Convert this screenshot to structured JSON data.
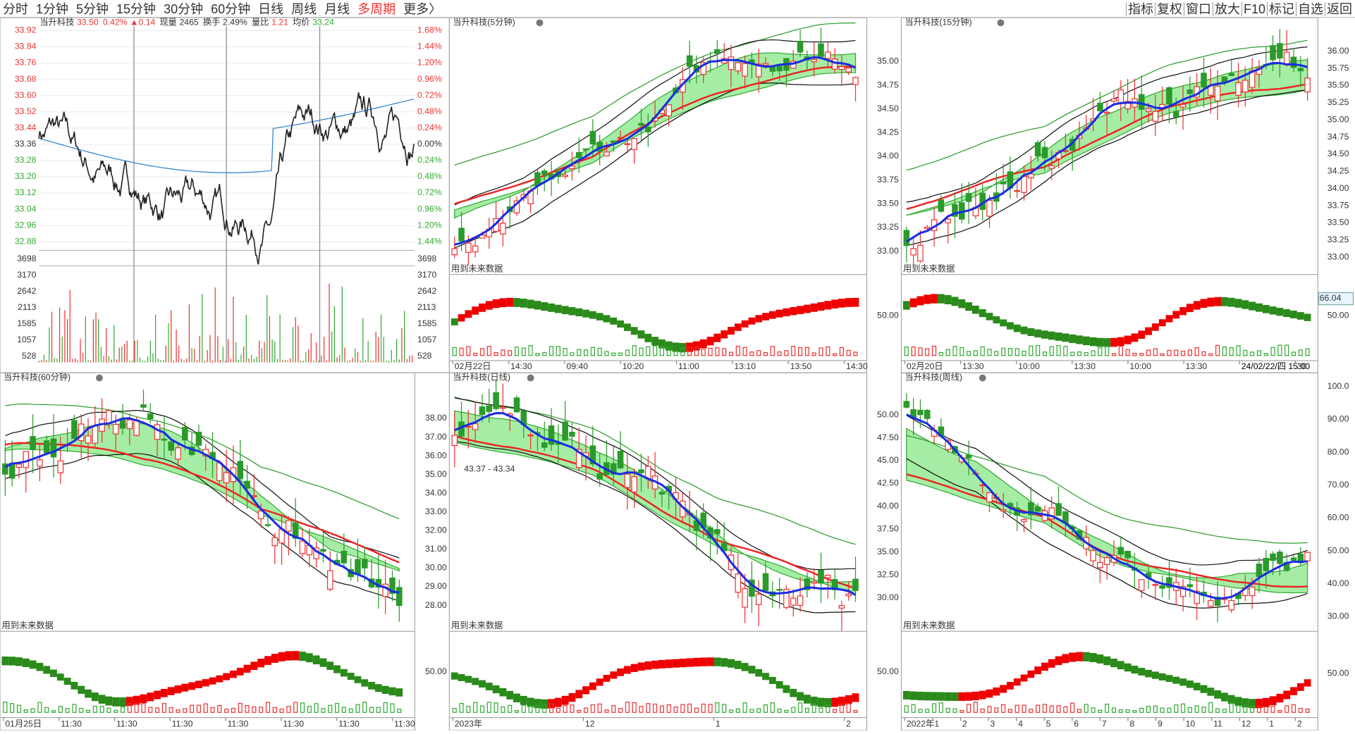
{
  "toolbar": {
    "tabs": [
      "分时",
      "1分钟",
      "5分钟",
      "15分钟",
      "30分钟",
      "60分钟",
      "日线",
      "周线",
      "月线",
      "多周期",
      "更多〉"
    ],
    "tools": [
      "指标",
      "复权",
      "窗口",
      "放大",
      "F10",
      "标记",
      "自选",
      "返回"
    ]
  },
  "intraday": {
    "name": "当升科技",
    "price": "33.50",
    "change_pct": "0.42%",
    "change": "▲0.14",
    "volume_label": "现量",
    "volume": "2465",
    "turnover_label": "换手",
    "turnover": "2.49%",
    "ratio_label": "量比",
    "ratio": "1.21",
    "avg_label": "均价",
    "avg": "33.24",
    "price_ticks": [
      "33.92",
      "33.84",
      "33.76",
      "33.68",
      "33.60",
      "33.52",
      "33.44",
      "33.36",
      "33.28",
      "33.20",
      "33.12",
      "33.04",
      "32.96",
      "32.88"
    ],
    "pct_ticks": [
      "1.68%",
      "1.44%",
      "1.20%",
      "0.96%",
      "0.72%",
      "0.48%",
      "0.24%",
      "0.00%",
      "0.24%",
      "0.48%",
      "0.72%",
      "0.96%",
      "1.20%",
      "1.44%"
    ],
    "max_volume": "3698",
    "vol_ticks": [
      "3170",
      "2642",
      "2113",
      "1585",
      "1057",
      "528"
    ]
  },
  "panels": [
    {
      "title": "当升科技(5分钟)",
      "note": "用到未来数据",
      "xlabels": [
        "02月22日",
        "14:30",
        "09:40",
        "10:20",
        "11:00",
        "13:10",
        "13:50",
        "14:30"
      ]
    },
    {
      "title": "当升科技(15分钟)",
      "note": "用到未来数据",
      "xlabels": [
        "02月20日",
        "13:30",
        "10:00",
        "13:30",
        "10:00",
        "13:30",
        "24/02/22/四 15:00",
        "30"
      ],
      "left_ticks": [
        "35.00",
        "34.75",
        "34.50",
        "34.25",
        "34.00",
        "33.75",
        "33.50",
        "33.25",
        "33.00"
      ],
      "left_sub": "50.00",
      "right_ticks": [
        "36.00",
        "35.75",
        "35.50",
        "35.25",
        "35.00",
        "34.75",
        "34.50",
        "34.25",
        "34.00",
        "33.75",
        "33.50",
        "33.25",
        "33.00"
      ],
      "right_box": "66.04",
      "right_sub": "50.00"
    },
    {
      "title": "当升科技(60分钟)",
      "note": "用到未来数据",
      "xlabels": [
        "01月25日",
        "11:30",
        "11:30",
        "11:30",
        "11:30",
        "11:30",
        "11:30",
        "11:30"
      ]
    },
    {
      "title": "当升科技(日线)",
      "note": "用到未来数据",
      "range": "43.37 - 43.34",
      "xlabels": [
        "2023年",
        "12",
        "1",
        "2"
      ],
      "left_ticks": [
        "38.00",
        "37.00",
        "36.00",
        "35.00",
        "34.00",
        "33.00",
        "32.00",
        "31.00",
        "30.00",
        "29.00",
        "28.00"
      ],
      "left_sub": "50.00"
    },
    {
      "title": "当升科技(周线)",
      "note": "用到未来数据",
      "xlabels": [
        "2022年",
        "1",
        "2",
        "3",
        "4",
        "5",
        "6",
        "7",
        "8",
        "9",
        "10",
        "11",
        "12",
        "1",
        "2"
      ],
      "left_ticks": [
        "50.00",
        "47.50",
        "45.00",
        "42.50",
        "40.00",
        "37.50",
        "35.00",
        "32.50",
        "30.00"
      ],
      "left_sub": "50.00",
      "right_ticks": [
        "100.0",
        "90.00",
        "80.00",
        "70.00",
        "60.00",
        "50.00",
        "40.00",
        "30.00"
      ],
      "right_sub": "50.00"
    }
  ]
}
